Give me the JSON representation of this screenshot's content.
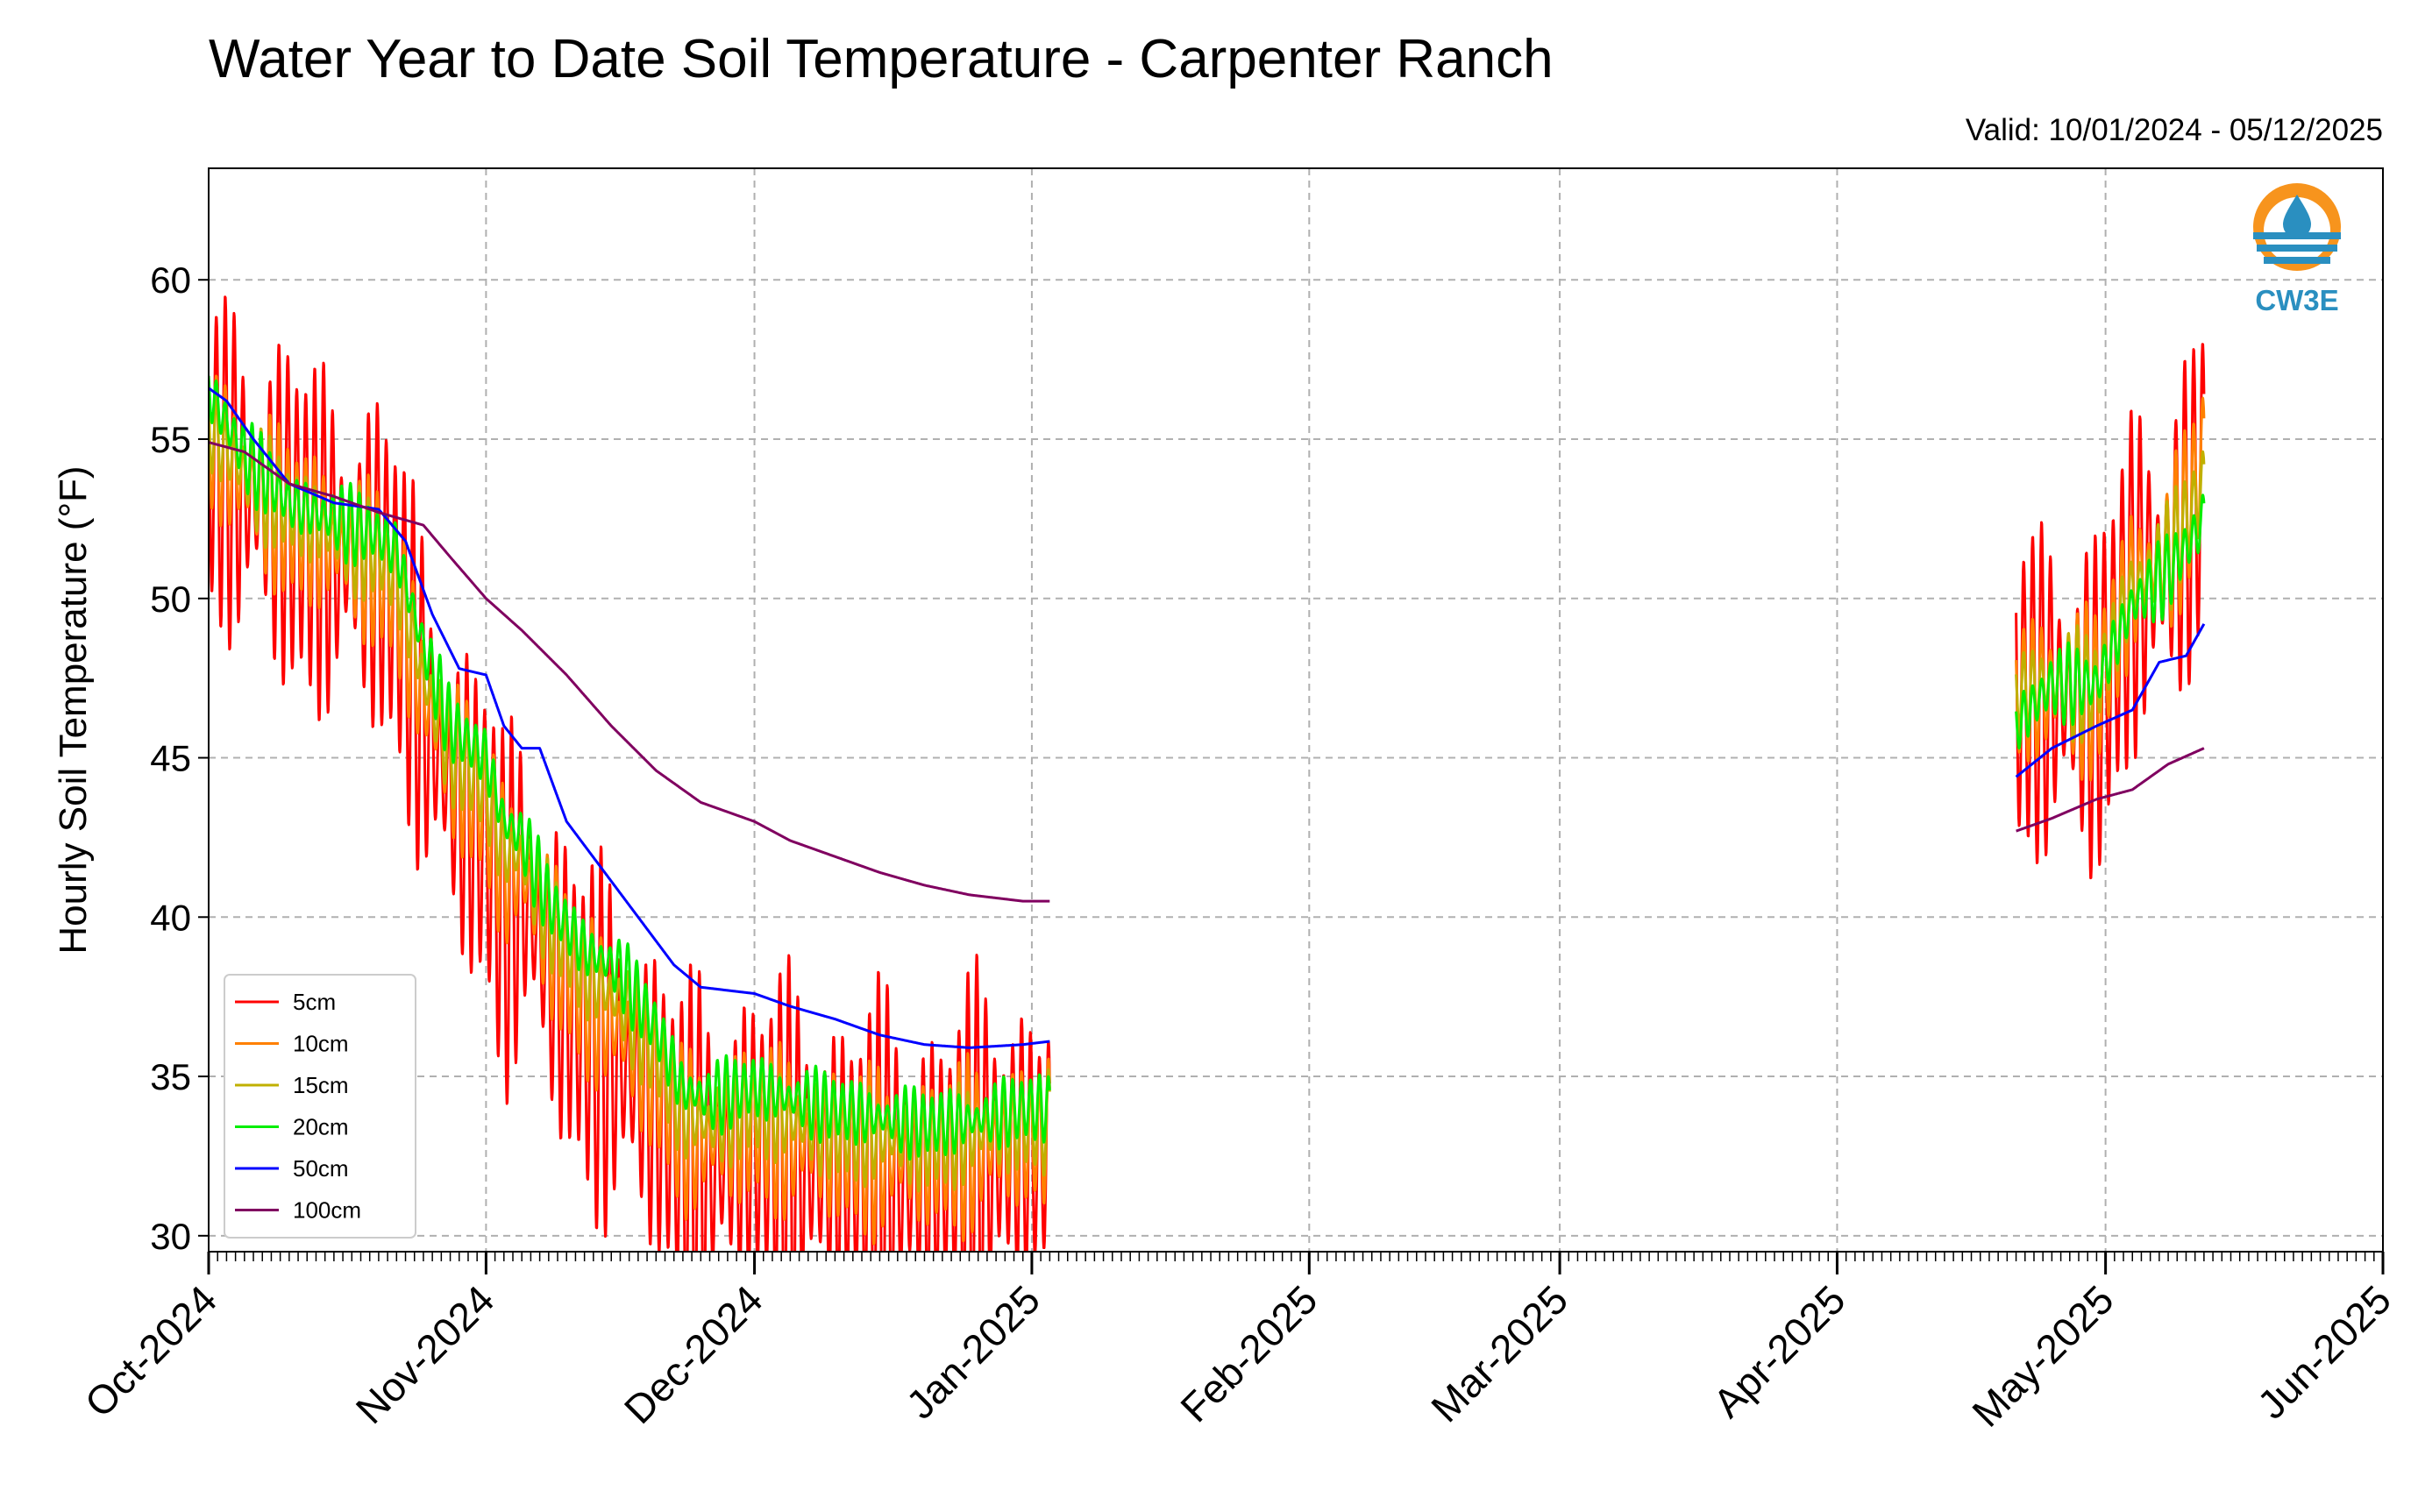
{
  "chart_data": {
    "type": "line",
    "title": "Water Year to Date Soil Temperature - Carpenter Ranch",
    "subtitle": "Valid: 10/01/2024 - 05/12/2025",
    "xlabel": "",
    "ylabel": "Hourly Soil Temperature (°F)",
    "xlim": [
      "2024-10-01",
      "2025-06-01"
    ],
    "ylim": [
      29.5,
      63.5
    ],
    "y_ticks": [
      30,
      35,
      40,
      45,
      50,
      55,
      60
    ],
    "x_ticks": [
      {
        "date": "2024-10-01",
        "label": "Oct-2024"
      },
      {
        "date": "2024-11-01",
        "label": "Nov-2024"
      },
      {
        "date": "2024-12-01",
        "label": "Dec-2024"
      },
      {
        "date": "2025-01-01",
        "label": "Jan-2025"
      },
      {
        "date": "2025-02-01",
        "label": "Feb-2025"
      },
      {
        "date": "2025-03-01",
        "label": "Mar-2025"
      },
      {
        "date": "2025-04-01",
        "label": "Apr-2025"
      },
      {
        "date": "2025-05-01",
        "label": "May-2025"
      },
      {
        "date": "2025-06-01",
        "label": "Jun-2025"
      }
    ],
    "grid": true,
    "legend_position": "lower-left",
    "logo_text": "CW3E",
    "series": [
      {
        "name": "5cm",
        "color": "#ff0000",
        "amplitude": 5.5,
        "segments": [
          {
            "points": [
              [
                "2024-10-01",
                54.5
              ],
              [
                "2024-10-05",
                53.5
              ],
              [
                "2024-10-10",
                52.5
              ],
              [
                "2024-10-15",
                51.5
              ],
              [
                "2024-10-20",
                51.0
              ],
              [
                "2024-10-22",
                50.0
              ],
              [
                "2024-10-25",
                46.5
              ],
              [
                "2024-10-28",
                44.0
              ],
              [
                "2024-11-01",
                42.5
              ],
              [
                "2024-11-03",
                40.0
              ],
              [
                "2024-11-05",
                41.0
              ],
              [
                "2024-11-08",
                38.5
              ],
              [
                "2024-11-12",
                36.5
              ],
              [
                "2024-11-16",
                35.5
              ],
              [
                "2024-11-20",
                34.0
              ],
              [
                "2024-11-23",
                32.5
              ],
              [
                "2024-11-26",
                32.2
              ],
              [
                "2024-12-01",
                32.9
              ],
              [
                "2024-12-05",
                32.4
              ],
              [
                "2024-12-10",
                32.1
              ],
              [
                "2024-12-15",
                31.9
              ],
              [
                "2024-12-20",
                31.8
              ],
              [
                "2024-12-25",
                32.3
              ],
              [
                "2024-12-31",
                32.7
              ],
              [
                "2025-01-03",
                32.6
              ]
            ]
          },
          {
            "points": [
              [
                "2025-04-21",
                47.0
              ],
              [
                "2025-04-25",
                47.0
              ],
              [
                "2025-04-30",
                46.5
              ],
              [
                "2025-05-04",
                50.5
              ],
              [
                "2025-05-08",
                51.0
              ],
              [
                "2025-05-11",
                53.0
              ],
              [
                "2025-05-12",
                54.0
              ]
            ]
          }
        ]
      },
      {
        "name": "10cm",
        "color": "#ff8000",
        "amplitude": 2.6,
        "segments": [
          {
            "points": [
              [
                "2024-10-01",
                55.0
              ],
              [
                "2024-10-05",
                53.8
              ],
              [
                "2024-10-10",
                52.5
              ],
              [
                "2024-10-15",
                51.7
              ],
              [
                "2024-10-20",
                51.0
              ],
              [
                "2024-10-22",
                50.2
              ],
              [
                "2024-10-25",
                47.0
              ],
              [
                "2024-10-28",
                45.0
              ],
              [
                "2024-11-01",
                43.5
              ],
              [
                "2024-11-03",
                41.5
              ],
              [
                "2024-11-05",
                41.5
              ],
              [
                "2024-11-08",
                39.5
              ],
              [
                "2024-11-12",
                37.5
              ],
              [
                "2024-11-16",
                36.5
              ],
              [
                "2024-11-20",
                35.0
              ],
              [
                "2024-11-23",
                33.3
              ],
              [
                "2024-11-26",
                33.0
              ],
              [
                "2024-12-01",
                33.6
              ],
              [
                "2024-12-05",
                33.1
              ],
              [
                "2024-12-10",
                32.8
              ],
              [
                "2024-12-15",
                32.6
              ],
              [
                "2024-12-20",
                32.5
              ],
              [
                "2024-12-25",
                32.8
              ],
              [
                "2024-12-31",
                33.1
              ],
              [
                "2025-01-03",
                33.1
              ]
            ]
          },
          {
            "points": [
              [
                "2025-04-21",
                47.0
              ],
              [
                "2025-04-25",
                47.2
              ],
              [
                "2025-04-30",
                47.0
              ],
              [
                "2025-05-04",
                50.5
              ],
              [
                "2025-05-08",
                51.3
              ],
              [
                "2025-05-11",
                53.5
              ],
              [
                "2025-05-12",
                54.5
              ]
            ]
          }
        ]
      },
      {
        "name": "15cm",
        "color": "#c0b000",
        "amplitude": 1.6,
        "segments": [
          {
            "points": [
              [
                "2024-10-01",
                55.3
              ],
              [
                "2024-10-05",
                54.0
              ],
              [
                "2024-10-10",
                52.8
              ],
              [
                "2024-10-15",
                52.0
              ],
              [
                "2024-10-20",
                51.5
              ],
              [
                "2024-10-22",
                50.8
              ],
              [
                "2024-10-25",
                47.5
              ],
              [
                "2024-10-28",
                45.3
              ],
              [
                "2024-11-01",
                44.0
              ],
              [
                "2024-11-03",
                42.0
              ],
              [
                "2024-11-05",
                42.0
              ],
              [
                "2024-11-08",
                40.0
              ],
              [
                "2024-11-12",
                38.3
              ],
              [
                "2024-11-16",
                37.3
              ],
              [
                "2024-11-20",
                35.8
              ],
              [
                "2024-11-23",
                33.8
              ],
              [
                "2024-11-26",
                33.5
              ],
              [
                "2024-12-01",
                34.1
              ],
              [
                "2024-12-05",
                33.6
              ],
              [
                "2024-12-10",
                33.3
              ],
              [
                "2024-12-15",
                33.1
              ],
              [
                "2024-12-20",
                32.9
              ],
              [
                "2024-12-25",
                33.2
              ],
              [
                "2024-12-31",
                33.5
              ],
              [
                "2025-01-03",
                33.5
              ]
            ]
          },
          {
            "points": [
              [
                "2025-04-21",
                47.0
              ],
              [
                "2025-04-25",
                47.4
              ],
              [
                "2025-04-30",
                47.2
              ],
              [
                "2025-05-04",
                50.3
              ],
              [
                "2025-05-08",
                51.3
              ],
              [
                "2025-05-11",
                53.0
              ],
              [
                "2025-05-12",
                53.5
              ]
            ]
          }
        ]
      },
      {
        "name": "20cm",
        "color": "#00ee00",
        "amplitude": 1.1,
        "segments": [
          {
            "points": [
              [
                "2024-10-01",
                56.5
              ],
              [
                "2024-10-05",
                54.5
              ],
              [
                "2024-10-10",
                53.0
              ],
              [
                "2024-10-15",
                52.5
              ],
              [
                "2024-10-20",
                52.0
              ],
              [
                "2024-10-22",
                51.5
              ],
              [
                "2024-10-25",
                48.5
              ],
              [
                "2024-10-28",
                46.0
              ],
              [
                "2024-11-01",
                45.0
              ],
              [
                "2024-11-03",
                43.0
              ],
              [
                "2024-11-05",
                42.5
              ],
              [
                "2024-11-08",
                40.5
              ],
              [
                "2024-11-12",
                39.0
              ],
              [
                "2024-11-16",
                38.3
              ],
              [
                "2024-11-20",
                36.5
              ],
              [
                "2024-11-23",
                34.6
              ],
              [
                "2024-11-26",
                34.3
              ],
              [
                "2024-12-01",
                34.7
              ],
              [
                "2024-12-05",
                34.3
              ],
              [
                "2024-12-10",
                34.0
              ],
              [
                "2024-12-15",
                33.7
              ],
              [
                "2024-12-20",
                33.5
              ],
              [
                "2024-12-25",
                33.6
              ],
              [
                "2024-12-31",
                34.0
              ],
              [
                "2025-01-03",
                34.0
              ]
            ]
          },
          {
            "points": [
              [
                "2025-04-21",
                46.0
              ],
              [
                "2025-04-25",
                47.3
              ],
              [
                "2025-04-30",
                47.3
              ],
              [
                "2025-05-04",
                49.8
              ],
              [
                "2025-05-08",
                50.8
              ],
              [
                "2025-05-11",
                52.0
              ],
              [
                "2025-05-12",
                52.5
              ]
            ]
          }
        ]
      },
      {
        "name": "50cm",
        "color": "#0000ff",
        "amplitude": 0,
        "segments": [
          {
            "points": [
              [
                "2024-10-01",
                56.6
              ],
              [
                "2024-10-03",
                56.2
              ],
              [
                "2024-10-06",
                55.0
              ],
              [
                "2024-10-10",
                53.6
              ],
              [
                "2024-10-15",
                53.0
              ],
              [
                "2024-10-20",
                52.8
              ],
              [
                "2024-10-23",
                51.8
              ],
              [
                "2024-10-26",
                49.5
              ],
              [
                "2024-10-29",
                47.8
              ],
              [
                "2024-11-01",
                47.6
              ],
              [
                "2024-11-03",
                46.0
              ],
              [
                "2024-11-05",
                45.3
              ],
              [
                "2024-11-07",
                45.3
              ],
              [
                "2024-11-10",
                43.0
              ],
              [
                "2024-11-14",
                41.5
              ],
              [
                "2024-11-18",
                40.0
              ],
              [
                "2024-11-22",
                38.5
              ],
              [
                "2024-11-25",
                37.8
              ],
              [
                "2024-12-01",
                37.6
              ],
              [
                "2024-12-05",
                37.2
              ],
              [
                "2024-12-10",
                36.8
              ],
              [
                "2024-12-15",
                36.3
              ],
              [
                "2024-12-20",
                36.0
              ],
              [
                "2024-12-25",
                35.9
              ],
              [
                "2024-12-31",
                36.0
              ],
              [
                "2025-01-03",
                36.1
              ]
            ]
          },
          {
            "points": [
              [
                "2025-04-21",
                44.4
              ],
              [
                "2025-04-25",
                45.3
              ],
              [
                "2025-04-30",
                46.0
              ],
              [
                "2025-05-04",
                46.5
              ],
              [
                "2025-05-07",
                48.0
              ],
              [
                "2025-05-10",
                48.2
              ],
              [
                "2025-05-12",
                49.2
              ]
            ]
          }
        ]
      },
      {
        "name": "100cm",
        "color": "#800060",
        "amplitude": 0,
        "segments": [
          {
            "points": [
              [
                "2024-10-01",
                54.9
              ],
              [
                "2024-10-05",
                54.6
              ],
              [
                "2024-10-10",
                53.6
              ],
              [
                "2024-10-15",
                53.2
              ],
              [
                "2024-10-20",
                52.7
              ],
              [
                "2024-10-25",
                52.3
              ],
              [
                "2024-10-28",
                51.3
              ],
              [
                "2024-11-01",
                50.0
              ],
              [
                "2024-11-05",
                49.0
              ],
              [
                "2024-11-10",
                47.6
              ],
              [
                "2024-11-15",
                46.0
              ],
              [
                "2024-11-20",
                44.6
              ],
              [
                "2024-11-25",
                43.6
              ],
              [
                "2024-12-01",
                43.0
              ],
              [
                "2024-12-05",
                42.4
              ],
              [
                "2024-12-10",
                41.9
              ],
              [
                "2024-12-15",
                41.4
              ],
              [
                "2024-12-20",
                41.0
              ],
              [
                "2024-12-25",
                40.7
              ],
              [
                "2024-12-31",
                40.5
              ],
              [
                "2025-01-03",
                40.5
              ]
            ]
          },
          {
            "points": [
              [
                "2025-04-21",
                42.7
              ],
              [
                "2025-04-25",
                43.1
              ],
              [
                "2025-04-30",
                43.7
              ],
              [
                "2025-05-04",
                44.0
              ],
              [
                "2025-05-08",
                44.8
              ],
              [
                "2025-05-12",
                45.3
              ]
            ]
          }
        ]
      }
    ]
  }
}
